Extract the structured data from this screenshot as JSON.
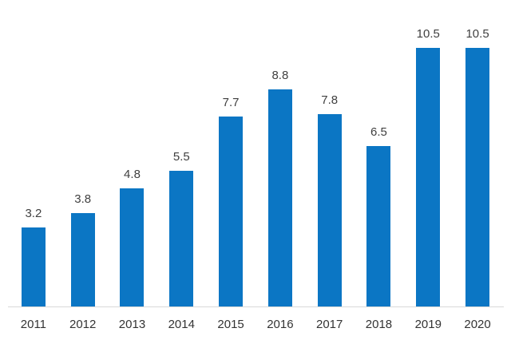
{
  "chart_data": {
    "type": "bar",
    "title": "",
    "xlabel": "",
    "ylabel": "",
    "categories": [
      "2011",
      "2012",
      "2013",
      "2014",
      "2015",
      "2016",
      "2017",
      "2018",
      "2019",
      "2020"
    ],
    "values": [
      3.2,
      3.8,
      4.8,
      5.5,
      7.7,
      8.8,
      7.8,
      6.5,
      10.5,
      10.5
    ],
    "data_labels": [
      "3.2",
      "3.8",
      "4.8",
      "5.5",
      "7.7",
      "8.8",
      "7.8",
      "6.5",
      "10.5",
      "10.5"
    ],
    "ylim": [
      0,
      10.5
    ],
    "grid": false,
    "legend": false,
    "y_axis_visible": false,
    "colors": {
      "bar": "#0b76c4",
      "value_label": "#404040",
      "axis_label": "#333333",
      "axis_line": "#d9d9d9",
      "background": "#ffffff"
    }
  }
}
